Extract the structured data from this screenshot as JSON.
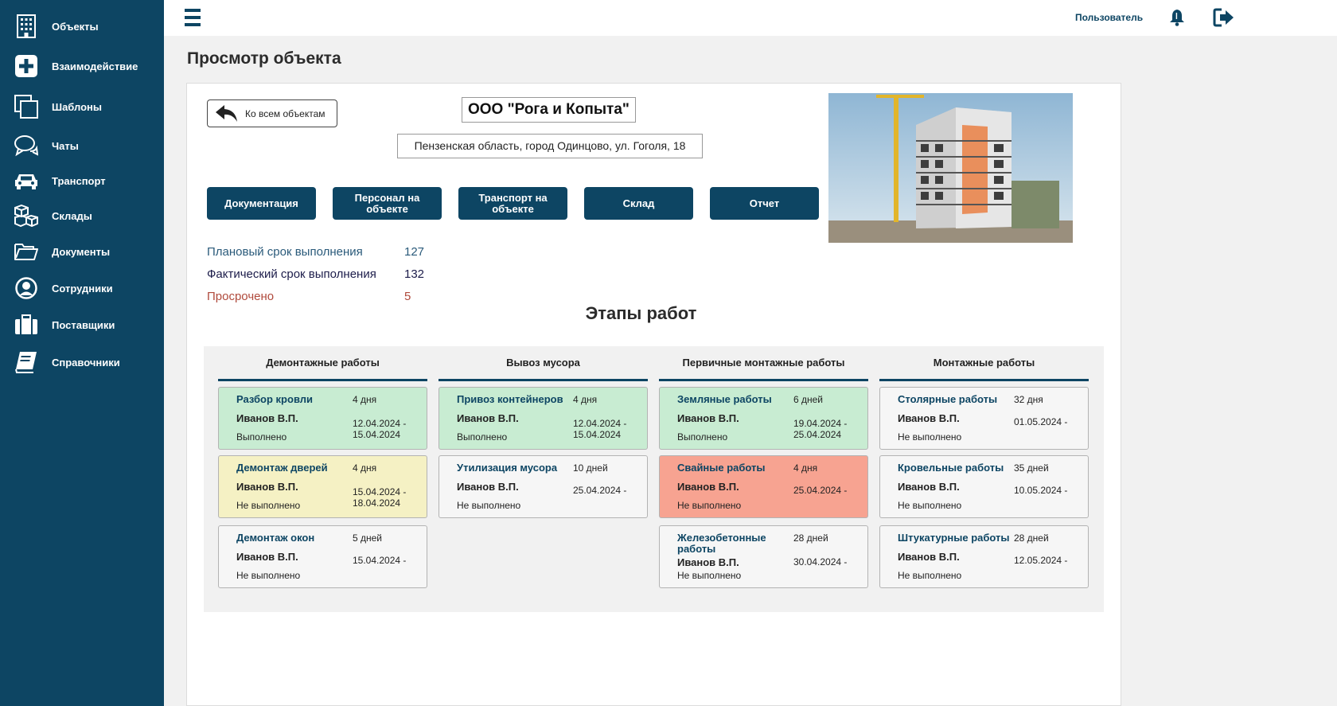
{
  "nav": [
    {
      "label": "Объекты",
      "icon": "building-icon"
    },
    {
      "label": "Взаимодействие",
      "icon": "plus-square-icon"
    },
    {
      "label": "Шаблоны",
      "icon": "copy-icon"
    },
    {
      "label": "Чаты",
      "icon": "chat-icon"
    },
    {
      "label": "Транспорт",
      "icon": "car-icon"
    },
    {
      "label": "Склады",
      "icon": "boxes-icon"
    },
    {
      "label": "Документы",
      "icon": "folder-icon"
    },
    {
      "label": "Сотрудники",
      "icon": "user-circle-icon"
    },
    {
      "label": "Поставщики",
      "icon": "briefcase-icon"
    },
    {
      "label": "Справочники",
      "icon": "book-icon"
    }
  ],
  "topbar": {
    "user": "Пользователь"
  },
  "page": {
    "title": "Просмотр объекта"
  },
  "object": {
    "back_label": "Ко всем объектам",
    "name": "ООО \"Рога и Копыта\"",
    "address": "Пензенская область, город Одинцово, ул. Гоголя, 18"
  },
  "actions": [
    "Документация",
    "Персонал на объекте",
    "Транспорт на объекте",
    "Склад",
    "Отчет"
  ],
  "stats": [
    {
      "label": "Плановый срок выполнения",
      "value": "127",
      "color": "#2a5a7a"
    },
    {
      "label": "Фактический срок выполнения",
      "value": "132",
      "color": "#1c1c4a"
    },
    {
      "label": "Просрочено",
      "value": "5",
      "color": "#b04a3c"
    }
  ],
  "stages_title": "Этапы работ",
  "columns": [
    {
      "title": "Демонтажные работы",
      "tasks": [
        {
          "name": "Разбор кровли",
          "duration": "4 дня",
          "person": "Иванов В.П.",
          "dates": "12.04.2024 -\n15.04.2024",
          "status": "Выполнено",
          "state": "done"
        },
        {
          "name": "Демонтаж дверей",
          "duration": "4 дня",
          "person": "Иванов В.П.",
          "dates": "15.04.2024 -\n18.04.2024",
          "status": "Не выполнено",
          "state": "warn"
        },
        {
          "name": "Демонтаж окон",
          "duration": "5 дней",
          "person": "Иванов В.П.",
          "dates": "15.04.2024 -",
          "status": "Не выполнено",
          "state": "todo"
        }
      ]
    },
    {
      "title": "Вывоз мусора",
      "tasks": [
        {
          "name": "Привоз контейнеров",
          "duration": "4 дня",
          "person": "Иванов В.П.",
          "dates": "12.04.2024 -\n15.04.2024",
          "status": "Выполнено",
          "state": "done"
        },
        {
          "name": "Утилизация мусора",
          "duration": "10 дней",
          "person": "Иванов В.П.",
          "dates": "25.04.2024 -",
          "status": "Не выполнено",
          "state": "todo"
        }
      ]
    },
    {
      "title": "Первичные монтажные работы",
      "tasks": [
        {
          "name": "Земляные работы",
          "duration": "6 дней",
          "person": "Иванов В.П.",
          "dates": "19.04.2024 -\n25.04.2024",
          "status": "Выполнено",
          "state": "done"
        },
        {
          "name": "Свайные работы",
          "duration": "4 дня",
          "person": "Иванов В.П.",
          "dates": "25.04.2024 -",
          "status": "Не выполнено",
          "state": "late"
        },
        {
          "name": "Железобетонные работы",
          "duration": "28 дней",
          "person": "Иванов В.П.",
          "dates": "30.04.2024 -",
          "status": "Не выполнено",
          "state": "todo"
        }
      ]
    },
    {
      "title": "Монтажные работы",
      "tasks": [
        {
          "name": "Столярные работы",
          "duration": "32 дня",
          "person": "Иванов В.П.",
          "dates": "01.05.2024 -",
          "status": "Не выполнено",
          "state": "todo"
        },
        {
          "name": "Кровельные работы",
          "duration": "35 дней",
          "person": "Иванов В.П.",
          "dates": "10.05.2024 -",
          "status": "Не выполнено",
          "state": "todo"
        },
        {
          "name": "Штукатурные работы",
          "duration": "28 дней",
          "person": "Иванов В.П.",
          "dates": "12.05.2024 -",
          "status": "Не выполнено",
          "state": "todo"
        }
      ]
    }
  ]
}
